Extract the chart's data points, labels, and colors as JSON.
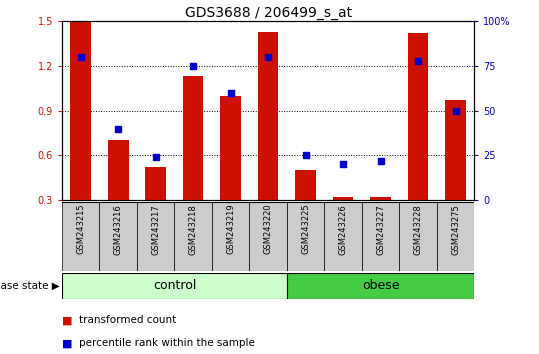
{
  "title": "GDS3688 / 206499_s_at",
  "samples": [
    "GSM243215",
    "GSM243216",
    "GSM243217",
    "GSM243218",
    "GSM243219",
    "GSM243220",
    "GSM243225",
    "GSM243226",
    "GSM243227",
    "GSM243228",
    "GSM243275"
  ],
  "transformed_count": [
    1.5,
    0.7,
    0.52,
    1.13,
    1.0,
    1.43,
    0.5,
    0.32,
    0.32,
    1.42,
    0.97
  ],
  "percentile_values": [
    80,
    40,
    24,
    75,
    60,
    80,
    25,
    20,
    22,
    78,
    50
  ],
  "groups": [
    "control",
    "control",
    "control",
    "control",
    "control",
    "control",
    "obese",
    "obese",
    "obese",
    "obese",
    "obese"
  ],
  "ylim_left": [
    0.3,
    1.5
  ],
  "ylim_right": [
    0,
    100
  ],
  "yticks_left": [
    0.3,
    0.6,
    0.9,
    1.2,
    1.5
  ],
  "yticks_right": [
    0,
    25,
    50,
    75,
    100
  ],
  "bar_color": "#CC1100",
  "dot_color": "#0000CC",
  "control_color": "#CCFFCC",
  "obese_color": "#44CC44",
  "label_color_left": "#CC1100",
  "label_color_right": "#0000CC",
  "background_color": "#FFFFFF",
  "tick_bg_color": "#CCCCCC",
  "bar_width": 0.55,
  "dot_size": 25,
  "legend_red_label": "transformed count",
  "legend_blue_label": "percentile rank within the sample",
  "disease_state_label": "disease state",
  "control_label": "control",
  "obese_label": "obese",
  "n_control": 6,
  "n_obese": 5,
  "title_fontsize": 10,
  "tick_fontsize": 7,
  "sample_fontsize": 6,
  "group_fontsize": 9,
  "legend_fontsize": 7.5
}
